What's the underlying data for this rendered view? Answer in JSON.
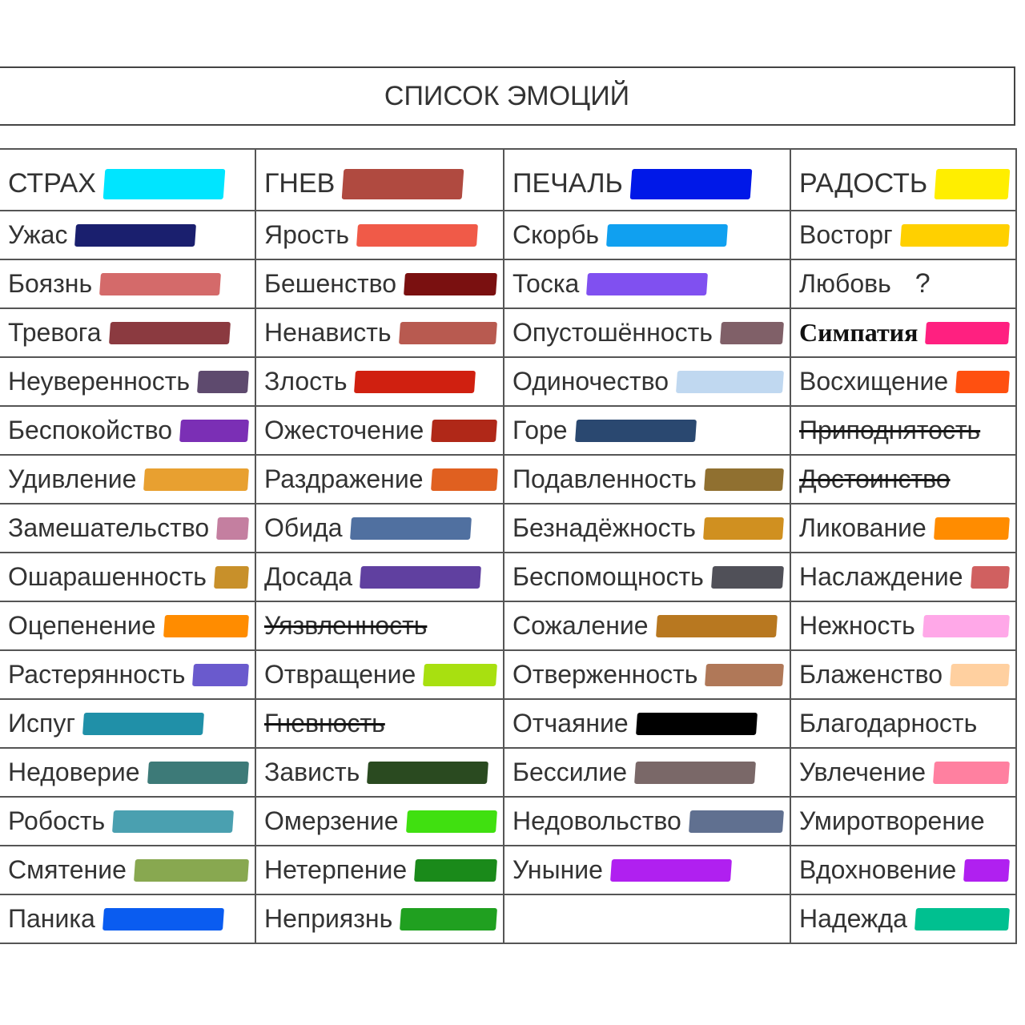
{
  "title": "СПИСОК ЭМОЦИЙ",
  "columns": [
    {
      "header": {
        "label": "СТРАХ",
        "color": "#00e5ff"
      },
      "items": [
        {
          "label": "Ужас",
          "color": "#1a1f6e"
        },
        {
          "label": "Боязнь",
          "color": "#d46a6a"
        },
        {
          "label": "Тревога",
          "color": "#8b3a40"
        },
        {
          "label": "Неуверенность",
          "color": "#5e4a6e"
        },
        {
          "label": "Беспокойство",
          "color": "#7b2fb5"
        },
        {
          "label": "Удивление",
          "color": "#e8a030"
        },
        {
          "label": "Замешательство",
          "color": "#c47fa0"
        },
        {
          "label": "Ошарашенность",
          "color": "#c8902a"
        },
        {
          "label": "Оцепенение",
          "color": "#ff8c00"
        },
        {
          "label": "Растерянность",
          "color": "#6a5acd"
        },
        {
          "label": "Испуг",
          "color": "#2090a8"
        },
        {
          "label": "Недоверие",
          "color": "#3d7a78"
        },
        {
          "label": "Робость",
          "color": "#4aa0b0"
        },
        {
          "label": "Смятение",
          "color": "#88a850"
        },
        {
          "label": "Паника",
          "color": "#0a5cf0"
        }
      ]
    },
    {
      "header": {
        "label": "ГНЕВ",
        "color": "#b04a40"
      },
      "items": [
        {
          "label": "Ярость",
          "color": "#f05a48"
        },
        {
          "label": "Бешенство",
          "color": "#7a1010"
        },
        {
          "label": "Ненависть",
          "color": "#b85a50"
        },
        {
          "label": "Злость",
          "color": "#d02010"
        },
        {
          "label": "Ожесточение",
          "color": "#b02818"
        },
        {
          "label": "Раздражение",
          "color": "#e06020"
        },
        {
          "label": "Обида",
          "color": "#5070a0"
        },
        {
          "label": "Досада",
          "color": "#6040a0"
        },
        {
          "label": "Уязвленность",
          "struck": true
        },
        {
          "label": "Отвращение",
          "color": "#a8e010"
        },
        {
          "label": "Гневность",
          "struck": true
        },
        {
          "label": "Зависть",
          "color": "#2a4a20"
        },
        {
          "label": "Омерзение",
          "color": "#40e010"
        },
        {
          "label": "Нетерпение",
          "color": "#1a8a1a"
        },
        {
          "label": "Неприязнь",
          "color": "#20a020"
        }
      ]
    },
    {
      "header": {
        "label": "ПЕЧАЛЬ",
        "color": "#0018e8"
      },
      "items": [
        {
          "label": "Скорбь",
          "color": "#10a0f0"
        },
        {
          "label": "Тоска",
          "color": "#8050f0"
        },
        {
          "label": "Опустошённость",
          "color": "#806068"
        },
        {
          "label": "Одиночество",
          "color": "#c0d8f0"
        },
        {
          "label": "Горе",
          "color": "#2a4870"
        },
        {
          "label": "Подавленность",
          "color": "#907030"
        },
        {
          "label": "Безнадёжность",
          "color": "#d09020"
        },
        {
          "label": "Беспомощность",
          "color": "#505058"
        },
        {
          "label": "Сожаление",
          "color": "#b87820"
        },
        {
          "label": "Отверженность",
          "color": "#b07858"
        },
        {
          "label": "Отчаяние",
          "color": "#000000"
        },
        {
          "label": "Бессилие",
          "color": "#7a6868"
        },
        {
          "label": "Недовольство",
          "color": "#607090"
        },
        {
          "label": "Уныние",
          "color": "#b020f0"
        }
      ]
    },
    {
      "header": {
        "label": "РАДОСТЬ",
        "color": "#ffee00"
      },
      "items": [
        {
          "label": "Восторг",
          "color": "#ffd000"
        },
        {
          "label": "Любовь",
          "mark": "?"
        },
        {
          "label": "Симпатия",
          "color": "#ff2080",
          "serif": true
        },
        {
          "label": "Восхищение",
          "color": "#ff5010"
        },
        {
          "label": "Приподнятость",
          "struck": true
        },
        {
          "label": "Достоинство",
          "struck": true
        },
        {
          "label": "Ликование",
          "color": "#ff8c00"
        },
        {
          "label": "Наслаждение",
          "color": "#d06060"
        },
        {
          "label": "Нежность",
          "color": "#ffa8e8"
        },
        {
          "label": "Блаженство",
          "color": "#ffd0a0"
        },
        {
          "label": "Благодарность"
        },
        {
          "label": "Увлечение",
          "color": "#ff80a0"
        },
        {
          "label": "Умиротворение"
        },
        {
          "label": "Вдохновение",
          "color": "#b020f0"
        },
        {
          "label": "Надежда",
          "color": "#00c090"
        }
      ]
    }
  ]
}
